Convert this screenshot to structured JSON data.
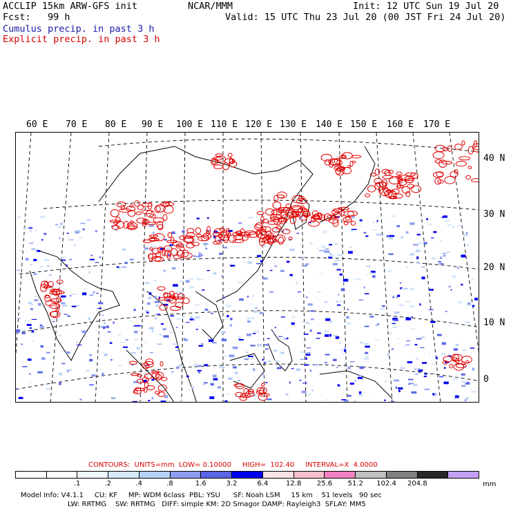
{
  "header": {
    "left1": "ACCLIP 15km ARW-GFS init",
    "left2": "Fcst:   99 h",
    "center": "NCAR/MMM",
    "init": "Init: 12 UTC Sun 19 Jul 20",
    "valid": "Valid: 15 UTC Thu 23 Jul 20 (00 JST Fri 24 Jul 20)",
    "cumulus": "Cumulus precip. in past 3 h",
    "explicit": "Explicit precip. in past 3 h"
  },
  "map": {
    "lon_labels": [
      "60 E",
      "70 E",
      "80 E",
      "90 E",
      "100 E",
      "110 E",
      "120 E",
      "130 E",
      "140 E",
      "150 E",
      "160 E",
      "170 E"
    ],
    "lat_labels": [
      "40 N",
      "30 N",
      "20 N",
      "10 N",
      "0"
    ]
  },
  "contours": {
    "units_label": "CONTOURS:  UNITS=mm  LOW= 0.10000     HIGH=  102.40     INTERVAL=X  4.0000"
  },
  "colorbar": {
    "colors": [
      "#ffffff",
      "#ffffff",
      "#eef6ff",
      "#d6e8fa",
      "#b8d0f5",
      "#8c9df0",
      "#5a66e6",
      "#0000f0",
      "#fbe3e3",
      "#f8bfcf",
      "#f082c0",
      "#c0c0c0",
      "#808080",
      "#282828",
      "#c4a0f5"
    ],
    "ticks": [
      ".1",
      ".2",
      ".4",
      ".8",
      "1.6",
      "3.2",
      "6.4",
      "12.8",
      "25.6",
      "51.2",
      "102.4",
      "204.8"
    ],
    "unit": "mm"
  },
  "footer": {
    "line1": "Model Info: V4.1.1     CU: KF     MP: WDM 6class  PBL: YSU      SF: Noah LSM     15 km    51 levels   90 sec",
    "line2": "LW: RRTMG    SW: RRTMG   DIFF: simple KM: 2D Smagor DAMP: Rayleigh3  SFLAY: MM5"
  }
}
